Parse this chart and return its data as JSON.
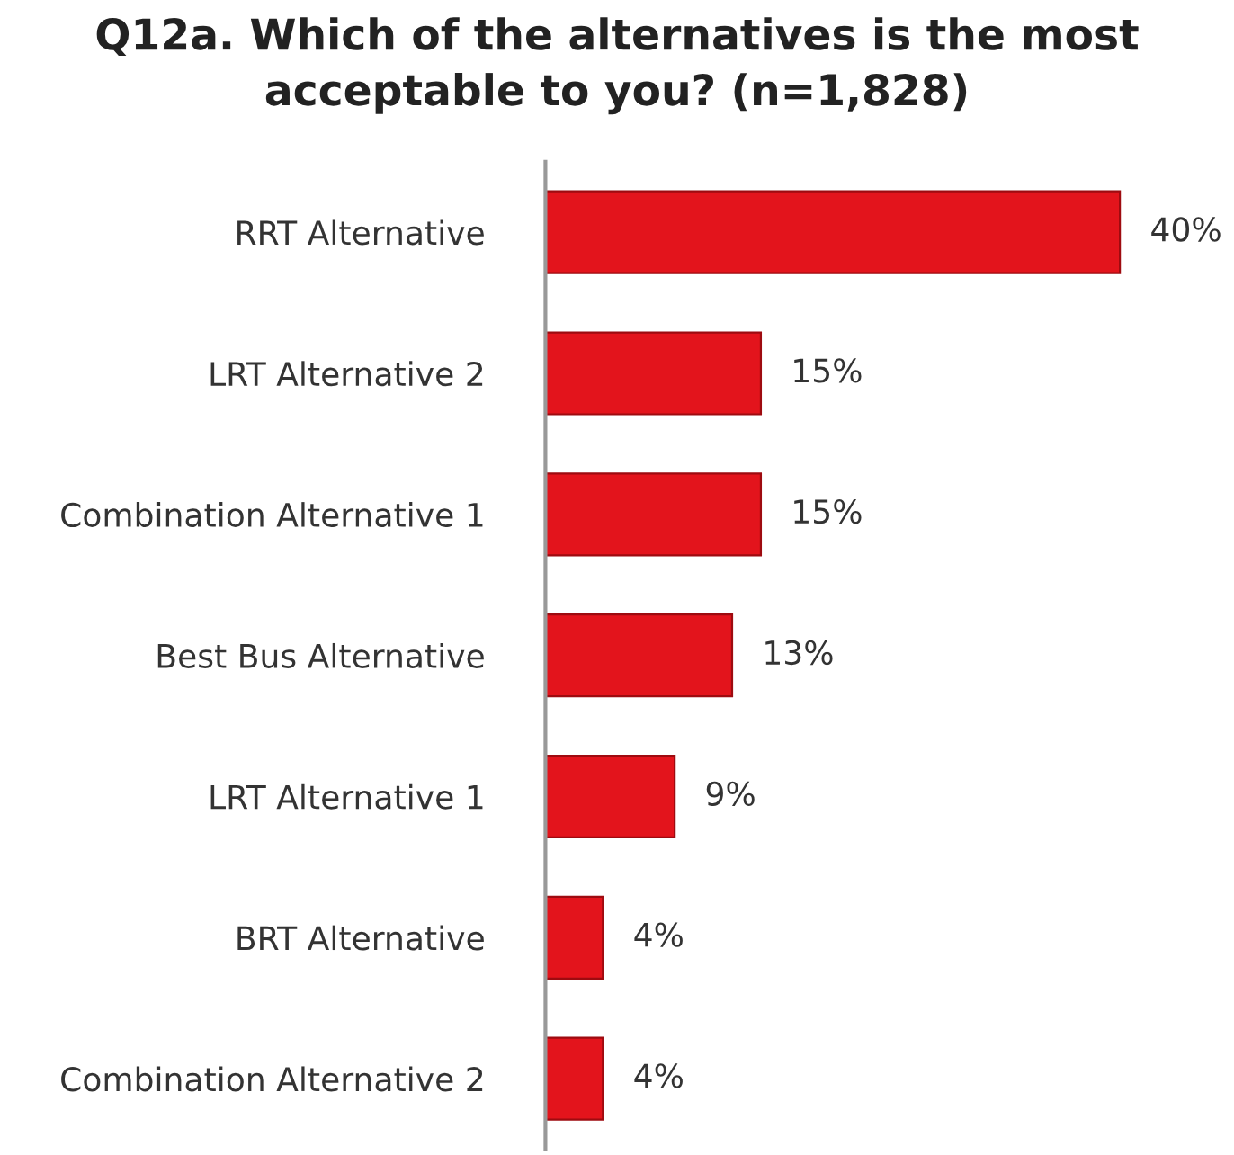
{
  "chart_data": {
    "type": "bar",
    "orientation": "horizontal",
    "title": "Q12a. Which of the alternatives is the most\nacceptable to you? (n=1,828)",
    "categories": [
      "RRT Alternative",
      "LRT Alternative 2",
      "Combination Alternative 1",
      "Best Bus Alternative",
      "LRT Alternative 1",
      "BRT Alternative",
      "Combination Alternative 2"
    ],
    "values": [
      40,
      15,
      15,
      13,
      9,
      4,
      4
    ],
    "value_labels": [
      "40%",
      "15%",
      "15%",
      "13%",
      "9%",
      "4%",
      "4%"
    ],
    "color": "#e3141c",
    "tick_labels": "y",
    "grid": false,
    "legend": false
  }
}
